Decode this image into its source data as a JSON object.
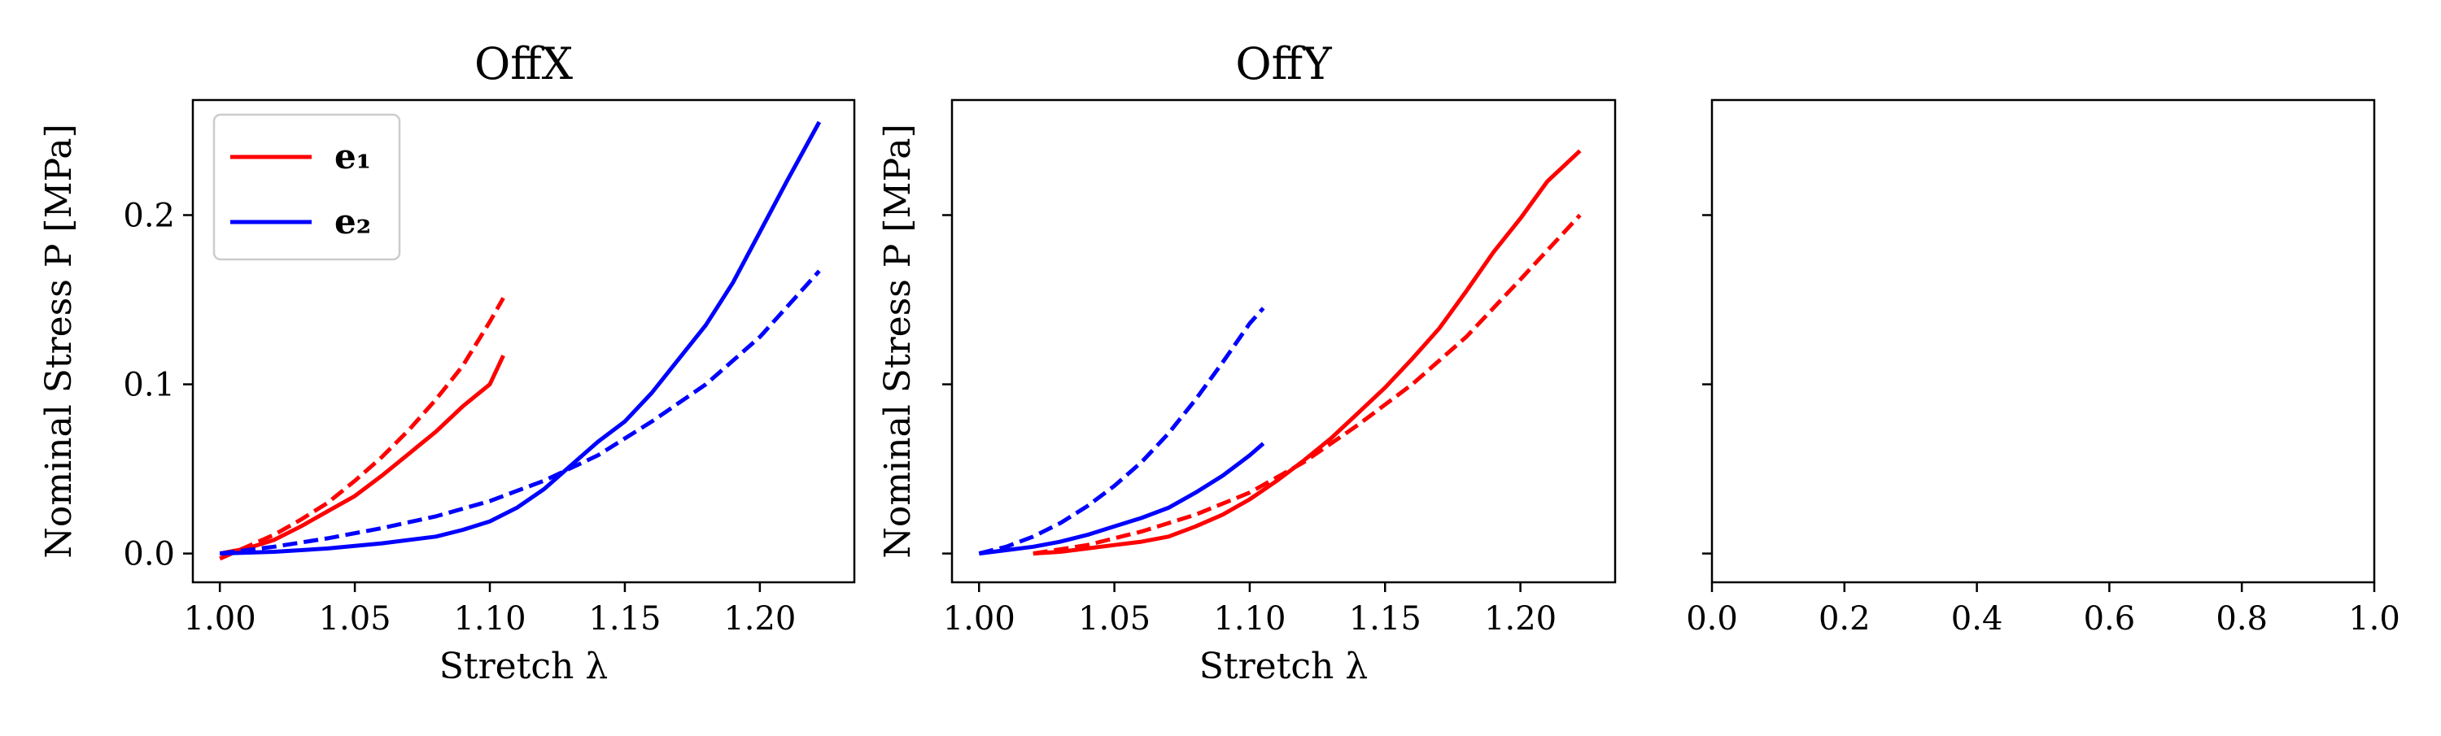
{
  "chart_data": [
    {
      "type": "line",
      "title": "OffX",
      "xlabel": "Stretch λ",
      "ylabel": "Nominal Stress P [MPa]",
      "xlim": [
        0.99,
        1.235
      ],
      "ylim": [
        -0.017,
        0.268
      ],
      "xticks": [
        1.0,
        1.05,
        1.1,
        1.15,
        1.2
      ],
      "yticks": [
        0.0,
        0.1,
        0.2
      ],
      "show_ytick_labels": true,
      "grid": false,
      "legend": {
        "placement": "top-left",
        "entries": [
          {
            "label": "e₁",
            "color": "#ff0000"
          },
          {
            "label": "e₂",
            "color": "#0000ff"
          }
        ]
      },
      "series": [
        {
          "color": "#ff0000",
          "style": "solid",
          "x": [
            1.0,
            1.01,
            1.02,
            1.03,
            1.04,
            1.05,
            1.06,
            1.07,
            1.08,
            1.09,
            1.1,
            1.105
          ],
          "y": [
            0.0,
            0.003,
            0.008,
            0.016,
            0.025,
            0.034,
            0.046,
            0.059,
            0.072,
            0.087,
            0.1,
            0.117
          ]
        },
        {
          "color": "#ff0000",
          "style": "dashed",
          "x": [
            1.0,
            1.01,
            1.02,
            1.03,
            1.04,
            1.05,
            1.06,
            1.07,
            1.08,
            1.09,
            1.1,
            1.105
          ],
          "y": [
            -0.003,
            0.004,
            0.011,
            0.02,
            0.03,
            0.043,
            0.057,
            0.073,
            0.091,
            0.111,
            0.137,
            0.151
          ]
        },
        {
          "color": "#0000ff",
          "style": "solid",
          "x": [
            1.0,
            1.02,
            1.04,
            1.06,
            1.08,
            1.09,
            1.1,
            1.11,
            1.12,
            1.13,
            1.14,
            1.15,
            1.16,
            1.17,
            1.18,
            1.19,
            1.2,
            1.21,
            1.222
          ],
          "y": [
            0.0,
            0.001,
            0.003,
            0.006,
            0.01,
            0.014,
            0.019,
            0.027,
            0.038,
            0.052,
            0.066,
            0.078,
            0.095,
            0.115,
            0.135,
            0.16,
            0.19,
            0.22,
            0.255
          ]
        },
        {
          "color": "#0000ff",
          "style": "dashed",
          "x": [
            1.0,
            1.02,
            1.04,
            1.06,
            1.08,
            1.1,
            1.12,
            1.14,
            1.16,
            1.18,
            1.2,
            1.222
          ],
          "y": [
            0.0,
            0.004,
            0.009,
            0.015,
            0.022,
            0.031,
            0.043,
            0.058,
            0.078,
            0.1,
            0.128,
            0.167
          ]
        }
      ]
    },
    {
      "type": "line",
      "title": "OffY",
      "xlabel": "Stretch λ",
      "ylabel": "Nominal Stress P [MPa]",
      "xlim": [
        0.99,
        1.235
      ],
      "ylim": [
        -0.017,
        0.268
      ],
      "xticks": [
        1.0,
        1.05,
        1.1,
        1.15,
        1.2
      ],
      "yticks": [
        0.0,
        0.1,
        0.2
      ],
      "show_ytick_labels": false,
      "grid": false,
      "series": [
        {
          "color": "#ff0000",
          "style": "solid",
          "x": [
            1.02,
            1.03,
            1.04,
            1.05,
            1.06,
            1.07,
            1.08,
            1.09,
            1.1,
            1.11,
            1.12,
            1.13,
            1.14,
            1.15,
            1.16,
            1.17,
            1.18,
            1.19,
            1.2,
            1.21,
            1.222
          ],
          "y": [
            0.0,
            0.001,
            0.003,
            0.005,
            0.007,
            0.01,
            0.016,
            0.023,
            0.032,
            0.043,
            0.055,
            0.068,
            0.083,
            0.098,
            0.115,
            0.133,
            0.155,
            0.178,
            0.198,
            0.22,
            0.238
          ]
        },
        {
          "color": "#ff0000",
          "style": "dashed",
          "x": [
            1.02,
            1.04,
            1.06,
            1.08,
            1.1,
            1.12,
            1.14,
            1.16,
            1.18,
            1.2,
            1.222
          ],
          "y": [
            0.0,
            0.005,
            0.013,
            0.023,
            0.036,
            0.054,
            0.076,
            0.1,
            0.128,
            0.162,
            0.2
          ]
        },
        {
          "color": "#0000ff",
          "style": "solid",
          "x": [
            1.0,
            1.01,
            1.02,
            1.03,
            1.04,
            1.05,
            1.06,
            1.07,
            1.08,
            1.09,
            1.1,
            1.105
          ],
          "y": [
            0.0,
            0.002,
            0.004,
            0.007,
            0.011,
            0.016,
            0.021,
            0.027,
            0.036,
            0.046,
            0.058,
            0.065
          ]
        },
        {
          "color": "#0000ff",
          "style": "dashed",
          "x": [
            1.0,
            1.01,
            1.02,
            1.03,
            1.04,
            1.05,
            1.06,
            1.07,
            1.08,
            1.09,
            1.1,
            1.105
          ],
          "y": [
            0.0,
            0.004,
            0.01,
            0.018,
            0.028,
            0.04,
            0.054,
            0.071,
            0.091,
            0.113,
            0.136,
            0.145
          ]
        }
      ]
    },
    {
      "type": "line",
      "title": "",
      "xlabel": "",
      "ylabel": "",
      "xlim": [
        0.0,
        1.0
      ],
      "ylim": [
        -0.017,
        0.268
      ],
      "xticks": [
        0.0,
        0.2,
        0.4,
        0.6,
        0.8,
        1.0
      ],
      "yticks": [
        0.0,
        0.1,
        0.2
      ],
      "show_ytick_labels": false,
      "grid": false,
      "series": []
    }
  ]
}
